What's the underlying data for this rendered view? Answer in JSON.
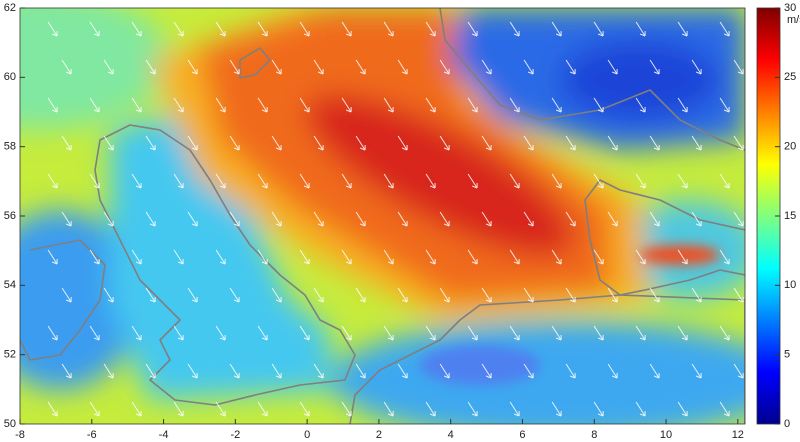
{
  "chart_data": {
    "type": "map",
    "xlim": [
      -8,
      12.2
    ],
    "ylim": [
      50,
      62
    ],
    "xticks": [
      -8,
      -6,
      -4,
      -2,
      0,
      2,
      4,
      6,
      8,
      10,
      12
    ],
    "yticks": [
      50,
      52,
      54,
      56,
      58,
      60,
      62
    ],
    "colorbar": {
      "label": "m/s",
      "lim": [
        0,
        30
      ],
      "ticks": [
        0,
        5,
        10,
        15,
        20,
        25,
        30
      ]
    }
  }
}
